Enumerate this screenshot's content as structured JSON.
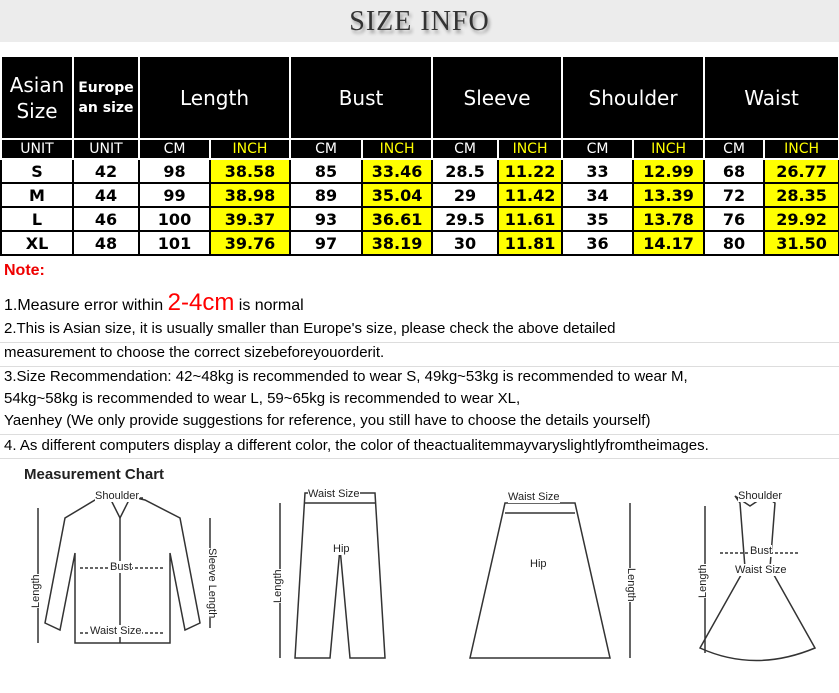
{
  "title": "SIZE    INFO",
  "table": {
    "headers": [
      "Asian Size",
      "Europe an size",
      "Length",
      "Bust",
      "Sleeve",
      "Shoulder",
      "Waist"
    ],
    "units": [
      "UNIT",
      "UNIT",
      "CM",
      "INCH",
      "CM",
      "INCH",
      "CM",
      "INCH",
      "CM",
      "INCH",
      "CM",
      "INCH"
    ],
    "rows": [
      [
        "S",
        "42",
        "98",
        "38.58",
        "85",
        "33.46",
        "28.5",
        "11.22",
        "33",
        "12.99",
        "68",
        "26.77"
      ],
      [
        "M",
        "44",
        "99",
        "38.98",
        "89",
        "35.04",
        "29",
        "11.42",
        "34",
        "13.39",
        "72",
        "28.35"
      ],
      [
        "L",
        "46",
        "100",
        "39.37",
        "93",
        "36.61",
        "29.5",
        "11.61",
        "35",
        "13.78",
        "76",
        "29.92"
      ],
      [
        "XL",
        "48",
        "101",
        "39.76",
        "97",
        "38.19",
        "30",
        "11.81",
        "36",
        "14.17",
        "80",
        "31.50"
      ]
    ]
  },
  "notes": {
    "heading": "Note:",
    "n1_pre": "1.Measure error within ",
    "n1_hl": "2-4cm",
    "n1_post": " is normal",
    "n2a": "2.This is Asian size, it is usually smaller than Europe's size, please check the above detailed",
    "n2b": "measurement to choose the correct sizebeforeyouorderit.",
    "n3a": "3.Size Recommendation:   42~48kg is recommended to wear S, 49kg~53kg is recommended to wear M,",
    "n3b": "54kg~58kg is recommended to wear L, 59~65kg is recommended to wear XL,",
    "n3c": "Yaenhey (We only provide suggestions for reference, you still have to choose the details yourself)",
    "n4": "4. As different computers display a different color, the color of theactualitemmayvaryslightlyfromtheimages."
  },
  "chart": {
    "title": "Measurement Chart",
    "shirt": {
      "shoulder": "Shoulder",
      "bust": "Bust",
      "length": "Length",
      "sleeve": "Sleeve Length",
      "waist": "Waist Size"
    },
    "pants": {
      "waist": "Waist Size",
      "hip": "Hip",
      "length": "Length"
    },
    "skirt": {
      "waist": "Waist Size",
      "hip": "Hip",
      "length": "Length"
    },
    "dress": {
      "shoulder": "Shoulder",
      "bust": "Bust",
      "waist": "Waist Size",
      "length": "Length"
    }
  },
  "colors": {
    "header_bg": "#000000",
    "inch_highlight": "#ffff00",
    "note_red": "#ff0000"
  }
}
